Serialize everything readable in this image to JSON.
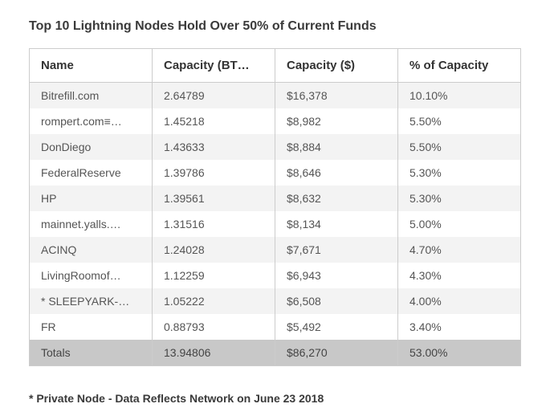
{
  "title": "Top 10 Lightning Nodes Hold Over 50% of Current Funds",
  "table": {
    "headers": {
      "name": "Name",
      "btc": "Capacity (BT…",
      "usd": "Capacity ($)",
      "pct": "% of Capacity"
    },
    "rows": [
      {
        "name": "Bitrefill.com",
        "btc": "2.64789",
        "usd": "$16,378",
        "pct": "10.10%"
      },
      {
        "name": "rompert.com≡…",
        "btc": "1.45218",
        "usd": "$8,982",
        "pct": "5.50%"
      },
      {
        "name": "DonDiego",
        "btc": "1.43633",
        "usd": "$8,884",
        "pct": "5.50%"
      },
      {
        "name": "FederalReserve",
        "btc": "1.39786",
        "usd": "$8,646",
        "pct": "5.30%"
      },
      {
        "name": "HP",
        "btc": "1.39561",
        "usd": "$8,632",
        "pct": "5.30%"
      },
      {
        "name": "mainnet.yalls.…",
        "btc": "1.31516",
        "usd": "$8,134",
        "pct": "5.00%"
      },
      {
        "name": "ACINQ",
        "btc": "1.24028",
        "usd": "$7,671",
        "pct": "4.70%"
      },
      {
        "name": "LivingRoomof…",
        "btc": "1.12259",
        "usd": "$6,943",
        "pct": "4.30%"
      },
      {
        "name": "* SLEEPYARK-…",
        "btc": "1.05222",
        "usd": "$6,508",
        "pct": "4.00%"
      },
      {
        "name": "FR",
        "btc": "0.88793",
        "usd": "$5,492",
        "pct": "3.40%"
      }
    ],
    "totals": {
      "name": "Totals",
      "btc": "13.94806",
      "usd": "$86,270",
      "pct": "53.00%"
    }
  },
  "footnote": "* Private Node - Data Reflects Network on June 23 2018"
}
